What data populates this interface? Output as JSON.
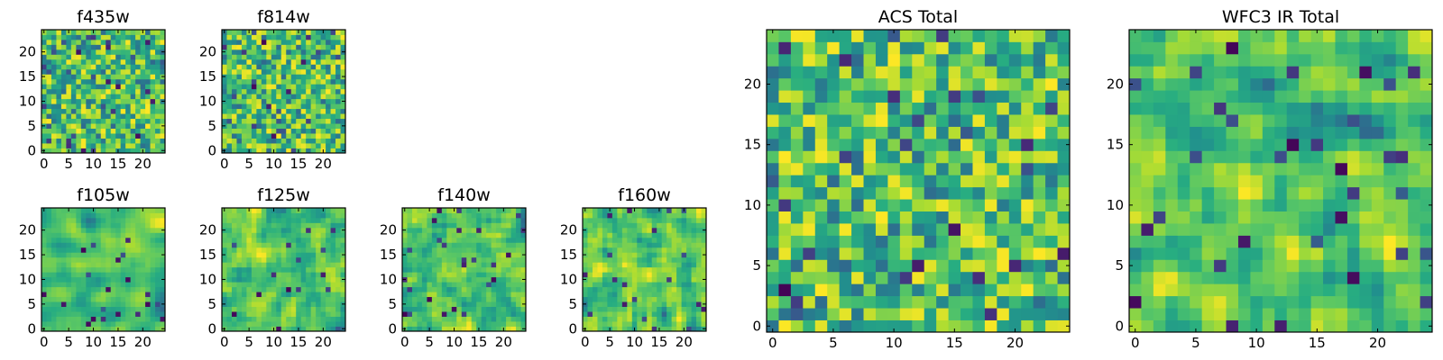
{
  "chart_data": [
    {
      "type": "heatmap",
      "title": "f435w",
      "xlabel": "",
      "ylabel": "",
      "xlim": [
        -0.5,
        24.5
      ],
      "ylim": [
        -0.5,
        24.5
      ],
      "xticks": [
        "0",
        "5",
        "10",
        "15",
        "20"
      ],
      "yticks": [
        "0",
        "5",
        "10",
        "15",
        "20"
      ],
      "grid_size": [
        25,
        25
      ],
      "value_range": [
        0,
        1
      ],
      "colormap": "viridis",
      "seed": 11,
      "smoothing": 0
    },
    {
      "type": "heatmap",
      "title": "f814w",
      "xlabel": "",
      "ylabel": "",
      "xlim": [
        -0.5,
        24.5
      ],
      "ylim": [
        -0.5,
        24.5
      ],
      "xticks": [
        "0",
        "5",
        "10",
        "15",
        "20"
      ],
      "yticks": [
        "0",
        "5",
        "10",
        "15",
        "20"
      ],
      "grid_size": [
        25,
        25
      ],
      "value_range": [
        0,
        1
      ],
      "colormap": "viridis",
      "seed": 23,
      "smoothing": 0
    },
    {
      "type": "heatmap",
      "title": "f105w",
      "xlabel": "",
      "ylabel": "",
      "xlim": [
        -0.5,
        24.5
      ],
      "ylim": [
        -0.5,
        24.5
      ],
      "xticks": [
        "0",
        "5",
        "10",
        "15",
        "20"
      ],
      "yticks": [
        "0",
        "5",
        "10",
        "15",
        "20"
      ],
      "grid_size": [
        25,
        25
      ],
      "value_range": [
        0,
        1
      ],
      "colormap": "viridis",
      "seed": 37,
      "smoothing": 2
    },
    {
      "type": "heatmap",
      "title": "f125w",
      "xlabel": "",
      "ylabel": "",
      "xlim": [
        -0.5,
        24.5
      ],
      "ylim": [
        -0.5,
        24.5
      ],
      "xticks": [
        "0",
        "5",
        "10",
        "15",
        "20"
      ],
      "yticks": [
        "0",
        "5",
        "10",
        "15",
        "20"
      ],
      "grid_size": [
        25,
        25
      ],
      "value_range": [
        0,
        1
      ],
      "colormap": "viridis",
      "seed": 41,
      "smoothing": 1
    },
    {
      "type": "heatmap",
      "title": "f140w",
      "xlabel": "",
      "ylabel": "",
      "xlim": [
        -0.5,
        24.5
      ],
      "ylim": [
        -0.5,
        24.5
      ],
      "xticks": [
        "0",
        "5",
        "10",
        "15",
        "20"
      ],
      "yticks": [
        "0",
        "5",
        "10",
        "15",
        "20"
      ],
      "grid_size": [
        25,
        25
      ],
      "value_range": [
        0,
        1
      ],
      "colormap": "viridis",
      "seed": 53,
      "smoothing": 1
    },
    {
      "type": "heatmap",
      "title": "f160w",
      "xlabel": "",
      "ylabel": "",
      "xlim": [
        -0.5,
        24.5
      ],
      "ylim": [
        -0.5,
        24.5
      ],
      "xticks": [
        "0",
        "5",
        "10",
        "15",
        "20"
      ],
      "yticks": [
        "0",
        "5",
        "10",
        "15",
        "20"
      ],
      "grid_size": [
        25,
        25
      ],
      "value_range": [
        0,
        1
      ],
      "colormap": "viridis",
      "seed": 67,
      "smoothing": 1
    },
    {
      "type": "heatmap",
      "title": "ACS Total",
      "xlabel": "",
      "ylabel": "",
      "xlim": [
        -0.5,
        24.5
      ],
      "ylim": [
        -0.5,
        24.5
      ],
      "xticks": [
        "0",
        "5",
        "10",
        "15",
        "20"
      ],
      "yticks": [
        "0",
        "5",
        "10",
        "15",
        "20"
      ],
      "grid_size": [
        25,
        25
      ],
      "value_range": [
        0,
        1
      ],
      "colormap": "viridis",
      "seed": 79,
      "smoothing": 0
    },
    {
      "type": "heatmap",
      "title": "WFC3 IR Total",
      "xlabel": "",
      "ylabel": "",
      "xlim": [
        -0.5,
        24.5
      ],
      "ylim": [
        -0.5,
        24.5
      ],
      "xticks": [
        "0",
        "5",
        "10",
        "15",
        "20"
      ],
      "yticks": [
        "0",
        "5",
        "10",
        "15",
        "20"
      ],
      "grid_size": [
        25,
        25
      ],
      "value_range": [
        0,
        1
      ],
      "colormap": "viridis",
      "seed": 97,
      "smoothing": 1
    }
  ]
}
